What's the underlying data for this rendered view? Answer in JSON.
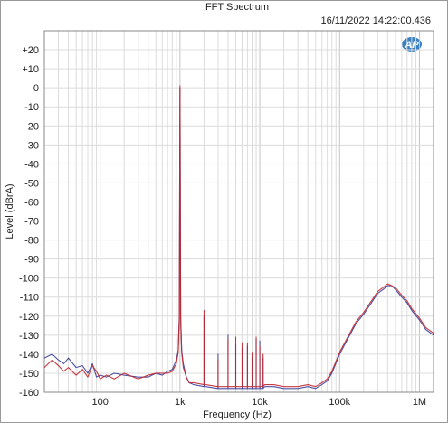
{
  "chart_data": {
    "type": "line",
    "title": "FFT Spectrum",
    "timestamp": "16/11/2022 14:22:00.436",
    "xlabel": "Frequency (Hz)",
    "ylabel": "Level (dBrA)",
    "x_scale": "log",
    "xlim": [
      20,
      1500000
    ],
    "ylim": [
      -160,
      30
    ],
    "x_ticks": [
      {
        "value": 100,
        "label": "100"
      },
      {
        "value": 1000,
        "label": "1k"
      },
      {
        "value": 10000,
        "label": "10k"
      },
      {
        "value": 100000,
        "label": "100k"
      },
      {
        "value": 1000000,
        "label": "1M"
      }
    ],
    "y_ticks": [
      {
        "value": 20,
        "label": "+20"
      },
      {
        "value": 10,
        "label": "+10"
      },
      {
        "value": 0,
        "label": "0"
      },
      {
        "value": -10,
        "label": "-10"
      },
      {
        "value": -20,
        "label": "-20"
      },
      {
        "value": -30,
        "label": "-30"
      },
      {
        "value": -40,
        "label": "-40"
      },
      {
        "value": -50,
        "label": "-50"
      },
      {
        "value": -60,
        "label": "-60"
      },
      {
        "value": -70,
        "label": "-70"
      },
      {
        "value": -80,
        "label": "-80"
      },
      {
        "value": -90,
        "label": "-90"
      },
      {
        "value": -100,
        "label": "-100"
      },
      {
        "value": -110,
        "label": "-110"
      },
      {
        "value": -120,
        "label": "-120"
      },
      {
        "value": -130,
        "label": "-130"
      },
      {
        "value": -140,
        "label": "-140"
      },
      {
        "value": -150,
        "label": "-150"
      },
      {
        "value": -160,
        "label": "-160"
      }
    ],
    "grid": true,
    "colors": {
      "grid": "#dcdcdc",
      "axis": "#888888",
      "logo": "#3a7fc1"
    },
    "logo_text": "AP",
    "series": [
      {
        "color": "#3b3f9a",
        "x": [
          20,
          25,
          30,
          35,
          40,
          50,
          60,
          70,
          80,
          90,
          100,
          120,
          150,
          200,
          300,
          400,
          500,
          600,
          700,
          800,
          900,
          950,
          980,
          1000,
          1020,
          1050,
          1100,
          1200,
          1300,
          1500,
          2000,
          2000,
          2000,
          2100,
          3000,
          3000,
          3000,
          3100,
          4000,
          4000,
          4000,
          4100,
          5000,
          5000,
          5000,
          5100,
          6000,
          6000,
          6000,
          6100,
          7000,
          7000,
          7000,
          7200,
          8000,
          8000,
          8000,
          8200,
          9000,
          9000,
          9000,
          9200,
          10000,
          10000,
          10000,
          10300,
          11000,
          11000,
          11000,
          11500,
          13000,
          15000,
          20000,
          30000,
          40000,
          50000,
          60000,
          70000,
          80000,
          100000,
          130000,
          160000,
          200000,
          250000,
          300000,
          350000,
          400000,
          450000,
          500000,
          600000,
          700000,
          800000,
          1000000,
          1200000,
          1500000
        ],
        "y": [
          -142,
          -140,
          -143,
          -145,
          -142,
          -147,
          -146,
          -150,
          -145,
          -152,
          -151,
          -152,
          -150,
          -151,
          -152,
          -152,
          -150,
          -151,
          -149,
          -148,
          -143,
          -138,
          -120,
          0,
          -120,
          -138,
          -145,
          -152,
          -155,
          -156,
          -157,
          -120,
          -157,
          -157,
          -158,
          -140,
          -158,
          -158,
          -158,
          -130,
          -158,
          -158,
          -158,
          -135,
          -158,
          -158,
          -158,
          -137,
          -158,
          -158,
          -158,
          -136,
          -158,
          -158,
          -158,
          -142,
          -158,
          -158,
          -158,
          -132,
          -158,
          -158,
          -158,
          -133,
          -158,
          -158,
          -158,
          -142,
          -158,
          -157,
          -157,
          -157,
          -158,
          -158,
          -157,
          -158,
          -156,
          -154,
          -150,
          -140,
          -131,
          -124,
          -119,
          -113,
          -108,
          -106,
          -104,
          -104,
          -106,
          -110,
          -113,
          -117,
          -122,
          -127,
          -130
        ]
      },
      {
        "color": "#c0272d",
        "x": [
          20,
          25,
          30,
          35,
          40,
          50,
          60,
          70,
          80,
          90,
          100,
          120,
          150,
          200,
          300,
          400,
          500,
          600,
          700,
          800,
          900,
          950,
          980,
          1000,
          1020,
          1050,
          1100,
          1200,
          1300,
          1500,
          2000,
          2000,
          2000,
          2100,
          3000,
          3000,
          3000,
          3100,
          4000,
          4000,
          4000,
          4100,
          5000,
          5000,
          5000,
          5100,
          6000,
          6000,
          6000,
          6100,
          7000,
          7000,
          7000,
          7200,
          8000,
          8000,
          8000,
          8200,
          9000,
          9000,
          9000,
          9200,
          10000,
          10000,
          10000,
          10300,
          11000,
          11000,
          11000,
          11500,
          13000,
          15000,
          20000,
          30000,
          40000,
          50000,
          60000,
          70000,
          80000,
          100000,
          130000,
          160000,
          200000,
          250000,
          300000,
          350000,
          400000,
          450000,
          500000,
          600000,
          700000,
          800000,
          1000000,
          1200000,
          1500000
        ],
        "y": [
          -147,
          -143,
          -146,
          -149,
          -147,
          -151,
          -148,
          -152,
          -146,
          -149,
          -153,
          -151,
          -153,
          -150,
          -153,
          -151,
          -150,
          -150,
          -150,
          -149,
          -145,
          -139,
          -122,
          1,
          -122,
          -139,
          -147,
          -152,
          -155,
          -155,
          -156,
          -117,
          -156,
          -156,
          -157,
          -143,
          -157,
          -157,
          -157,
          -132,
          -157,
          -157,
          -157,
          -131,
          -157,
          -157,
          -157,
          -134,
          -157,
          -157,
          -157,
          -134,
          -157,
          -157,
          -157,
          -139,
          -157,
          -157,
          -157,
          -131,
          -157,
          -157,
          -157,
          -136,
          -157,
          -157,
          -157,
          -140,
          -157,
          -156,
          -156,
          -156,
          -157,
          -157,
          -156,
          -157,
          -155,
          -153,
          -149,
          -139,
          -130,
          -123,
          -118,
          -112,
          -107,
          -105,
          -103,
          -104,
          -105,
          -109,
          -112,
          -116,
          -121,
          -126,
          -129
        ]
      }
    ]
  }
}
